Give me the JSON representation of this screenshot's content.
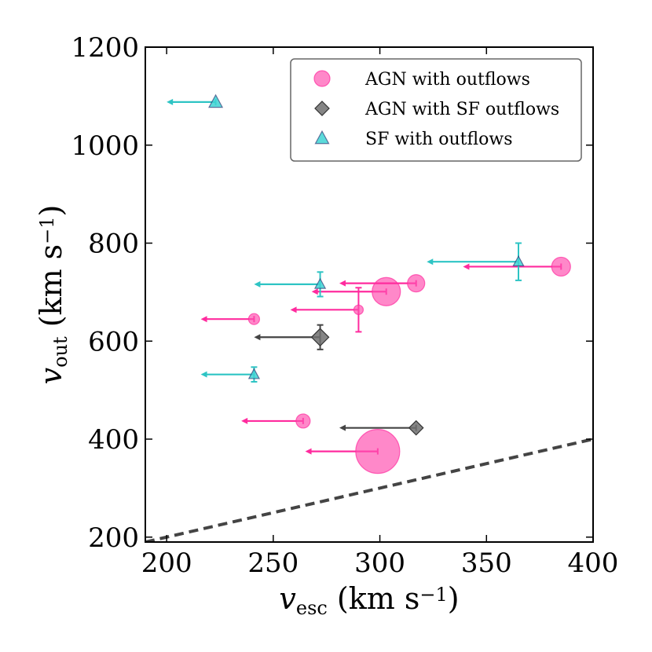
{
  "chart_data": {
    "type": "scatter",
    "title": "",
    "xlabel": {
      "main": "v",
      "sub": "esc",
      "unit": " (km s",
      "sup": "−1",
      "close": ")"
    },
    "ylabel": {
      "main": "v",
      "sub": "out",
      "unit": " (km s",
      "sup": "−1",
      "close": ")"
    },
    "xlim": [
      190,
      400
    ],
    "ylim": [
      190,
      1200
    ],
    "xticks": [
      200,
      250,
      300,
      350,
      400
    ],
    "yticks": [
      200,
      400,
      600,
      800,
      1000,
      1200
    ],
    "legend_position": "top-right",
    "reference_line": {
      "style": "dashed",
      "color": "#444444",
      "points": [
        [
          190,
          190
        ],
        [
          400,
          400
        ]
      ]
    },
    "series": [
      {
        "name": "AGN with outflows",
        "marker": "circle",
        "color": "#ff4fb0",
        "errcolor": "#ff2b9e",
        "points": [
          {
            "x": 241,
            "y": 645,
            "size": 7,
            "xarrow_to": 216
          },
          {
            "x": 264,
            "y": 437,
            "size": 9,
            "xarrow_to": 235
          },
          {
            "x": 290,
            "y": 664,
            "size": 6,
            "xarrow_to": 258,
            "yerr": 45
          },
          {
            "x": 299,
            "y": 375,
            "size": 28,
            "xarrow_to": 265
          },
          {
            "x": 303,
            "y": 701,
            "size": 18,
            "xarrow_to": 268
          },
          {
            "x": 317,
            "y": 718,
            "size": 11,
            "xarrow_to": 281
          },
          {
            "x": 385,
            "y": 752,
            "size": 12,
            "xarrow_to": 339
          }
        ]
      },
      {
        "name": "AGN with SF outflows",
        "marker": "diamond",
        "color": "#707070",
        "errcolor": "#444444",
        "points": [
          {
            "x": 272,
            "y": 608,
            "size": 11,
            "xarrow_to": 241,
            "yerr": 25
          },
          {
            "x": 317,
            "y": 423,
            "size": 9,
            "xarrow_to": 281
          }
        ]
      },
      {
        "name": "SF with outflows",
        "marker": "triangle",
        "color": "#3fd3d3",
        "errcolor": "#2ec4c4",
        "points": [
          {
            "x": 223,
            "y": 1088,
            "size": 9,
            "xarrow_to": 200
          },
          {
            "x": 241,
            "y": 532,
            "size": 7,
            "xarrow_to": 216,
            "yerr": 15
          },
          {
            "x": 272,
            "y": 716,
            "size": 7,
            "xarrow_to": 241,
            "yerr": 25
          },
          {
            "x": 365,
            "y": 762,
            "size": 7,
            "xarrow_to": 322,
            "yerr": 38
          }
        ]
      }
    ]
  }
}
